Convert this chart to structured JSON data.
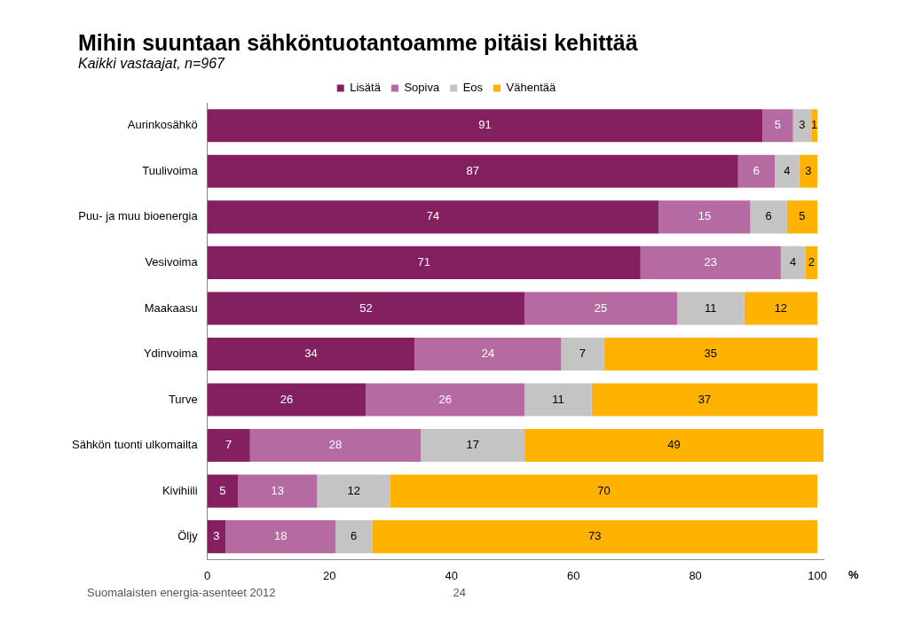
{
  "chart_data": {
    "type": "bar",
    "orientation": "horizontal",
    "stacked": true,
    "title": "Mihin suuntaan sähköntuotantoamme pitäisi kehittää",
    "subtitle": "Kaikki vastaajat, n=967",
    "xlabel": "%",
    "categories": [
      "Aurinkosähkö",
      "Tuulivoima",
      "Puu- ja muu bioenergia",
      "Vesivoima",
      "Maakaasu",
      "Ydinvoima",
      "Turve",
      "Sähkön tuonti ulkomailta",
      "Kivihiili",
      "Öljy"
    ],
    "series": [
      {
        "name": "Lisätä",
        "color": "#84205f",
        "values": [
          91,
          87,
          74,
          71,
          52,
          34,
          26,
          7,
          5,
          3
        ]
      },
      {
        "name": "Sopiva",
        "color": "#b56aa2",
        "values": [
          5,
          6,
          15,
          23,
          25,
          24,
          26,
          28,
          13,
          18
        ]
      },
      {
        "name": "Eos",
        "color": "#c4c4c4",
        "values": [
          3,
          4,
          6,
          4,
          11,
          7,
          11,
          17,
          12,
          6
        ]
      },
      {
        "name": "Vähentää",
        "color": "#ffb300",
        "values": [
          1,
          3,
          5,
          2,
          12,
          35,
          37,
          49,
          70,
          73
        ]
      }
    ],
    "xlim": [
      0,
      101
    ],
    "xticks": [
      0,
      20,
      40,
      60,
      80,
      100
    ],
    "grid": false,
    "legend": "top",
    "data_labels": true,
    "annotations": [
      "Suomalaisten energia-asenteet 2012",
      "24"
    ]
  }
}
